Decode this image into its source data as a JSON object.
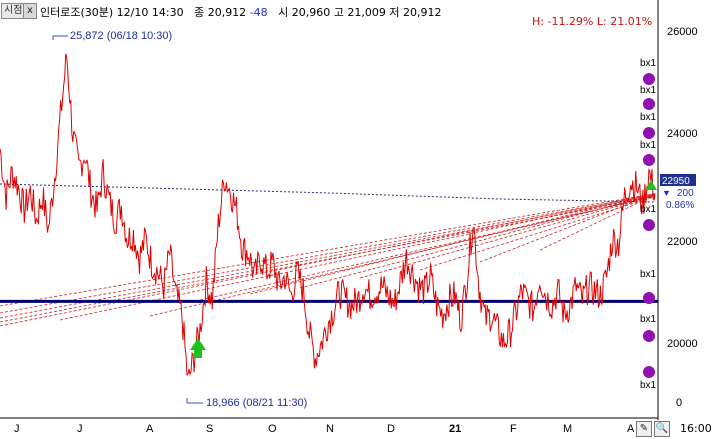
{
  "header": {
    "tab_label": "시점",
    "close_label": "x",
    "title": "인터로조(30분) 12/10 14:30",
    "quote_close": "종 20,912",
    "quote_change": "-48",
    "quote_rest": "시 20,960 고 21,009 저 20,912",
    "high_low": "H: -11.29%   L: 21.01%"
  },
  "bottom_tools": {
    "edit_icon": "pencil-icon",
    "zoom_icon": "magnifier-icon",
    "time": "16:00"
  },
  "chart_data": {
    "type": "line",
    "x_axis_labels": [
      "J",
      "J",
      "A",
      "S",
      "O",
      "N",
      "D",
      "21",
      "F",
      "M",
      "A"
    ],
    "y_axis_labels": [
      "26000",
      "24000",
      "22000",
      "20000",
      "0"
    ],
    "ylim": [
      18600,
      26400
    ],
    "annotations": {
      "high": "25,872 (06/18 10:30)",
      "low": "18,966 (08/21 11:30)",
      "current_price": "22950",
      "diff": "200",
      "pct": "0.86%"
    },
    "horizontal_line": 20680,
    "marker_label": "bx1",
    "marker_count": 10,
    "series": [
      {
        "values": [
          23900,
          22900,
          23400,
          23100,
          22600,
          23000,
          22400,
          22900,
          22200,
          23300,
          24600,
          25872,
          24200,
          23500,
          23800,
          23000,
          22600,
          23400,
          22800,
          22400,
          22700,
          22000,
          22100,
          21600,
          22000,
          21500,
          21300,
          21000,
          21700,
          20800,
          20400,
          18966,
          19500,
          20100,
          21100,
          20700,
          22300,
          23300,
          23000,
          22600,
          21800,
          21700,
          21200,
          21600,
          21300,
          21500,
          21000,
          21200,
          20800,
          21300,
          20900,
          20000,
          19500,
          19800,
          20200,
          20500,
          20900,
          20700,
          20600,
          20700,
          21000,
          20800,
          20900,
          21000,
          20800,
          20600,
          21100,
          21600,
          21300,
          21000,
          20900,
          21200,
          20600,
          20400,
          20700,
          20800,
          20300,
          21200,
          22400,
          21000,
          20300,
          20400,
          20100,
          19800,
          20000,
          20400,
          20900,
          20700,
          20500,
          21200,
          20800,
          20600,
          20900,
          20400,
          20600,
          21000,
          20700,
          21000,
          20900,
          20800,
          21200,
          22000,
          21900,
          22900,
          23200,
          23100,
          22700,
          23400,
          22950
        ],
        "color": "#e00000"
      }
    ]
  }
}
